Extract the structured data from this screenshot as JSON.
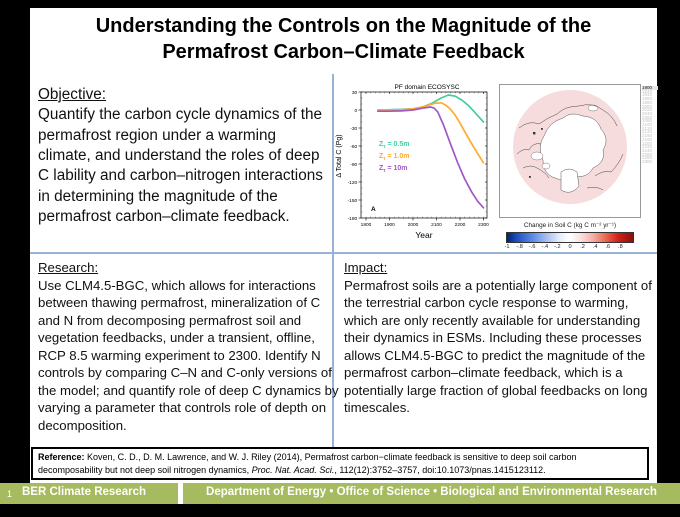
{
  "title": {
    "line1": "Understanding the Controls on the Magnitude of the",
    "line2": "Permafrost Carbon–Climate Feedback"
  },
  "objective": {
    "heading": "Objective:",
    "body": "Quantify the carbon cycle dynamics of the permafrost region under a warming climate, and understand the roles of deep C lability and carbon–nitrogen interactions in determining the magnitude of the permafrost carbon–climate feedback."
  },
  "research": {
    "heading": "Research:",
    "body": "Use CLM4.5-BGC, which allows for interactions between thawing permafrost, mineralization of C and N from decomposing permafrost soil and vegetation feedbacks, under a transient, offline, RCP 8.5 warming experiment to 2300. Identify N controls by comparing C–N and C-only versions of the model; and quantify role of deep C dynamics by varying a parameter that controls role of depth on decomposition."
  },
  "impact": {
    "heading": "Impact:",
    "body": "Permafrost soils are a potentially large component of the terrestrial carbon cycle response to warming, which are only recently available for understanding their dynamics in ESMs. Including these processes allows CLM4.5-BGC to predict the magnitude of the permafrost carbon–climate feedback, which is a potentially large fraction of global feedbacks on long timescales."
  },
  "reference": {
    "label": "Reference:",
    "text_before_journal": "Koven, C. D., D. M. Lawrence, and W. J. Riley (2014), Permafrost carbon−climate feedback is sensitive to deep soil carbon decomposability but not deep soil nitrogen dynamics, ",
    "journal": "Proc. Nat. Acad. Sci.",
    "text_after_journal": ", 112(12):3752–3757, doi:10.1073/pnas.1415123112."
  },
  "footer": {
    "page_number": "1",
    "left_label": "BER Climate Research",
    "right_label": "Department of Energy  •  Office of Science  •  Biological and Environmental Research"
  },
  "chart_data": {
    "type": "line",
    "title": "PF domain ECOSYSC",
    "xlabel": "Year",
    "ylabel": "Δ Total C (Pg)",
    "annotation": "A",
    "xlim": [
      1800,
      2300
    ],
    "ylim": [
      -180,
      30
    ],
    "xticks": [
      1800,
      1900,
      2000,
      2100,
      2200,
      2300
    ],
    "yticks": [
      30,
      0,
      -30,
      -60,
      -90,
      -120,
      -150,
      -180
    ],
    "legend_position": "mid-left",
    "grid": false,
    "series": [
      {
        "name_base": "Z",
        "name_sub": "τ",
        "name_rest": " = 0.5m",
        "color": "#3fcf9f",
        "points": [
          [
            1850,
            0
          ],
          [
            1900,
            0.5
          ],
          [
            1950,
            1
          ],
          [
            2000,
            2
          ],
          [
            2040,
            5
          ],
          [
            2080,
            11
          ],
          [
            2120,
            20
          ],
          [
            2150,
            25
          ],
          [
            2180,
            23
          ],
          [
            2210,
            16
          ],
          [
            2240,
            6
          ],
          [
            2270,
            -7
          ],
          [
            2300,
            -20
          ]
        ]
      },
      {
        "name_base": "Z",
        "name_sub": "τ",
        "name_rest": " = 1.0m",
        "color": "#ffab2e",
        "points": [
          [
            1850,
            0
          ],
          [
            1900,
            0
          ],
          [
            1950,
            0.5
          ],
          [
            2000,
            2
          ],
          [
            2050,
            6
          ],
          [
            2090,
            11
          ],
          [
            2120,
            12
          ],
          [
            2140,
            8
          ],
          [
            2160,
            1
          ],
          [
            2180,
            -9
          ],
          [
            2200,
            -22
          ],
          [
            2230,
            -43
          ],
          [
            2260,
            -63
          ],
          [
            2300,
            -88
          ]
        ]
      },
      {
        "name_base": "Z",
        "name_sub": "τ",
        "name_rest": " = 10m",
        "color": "#a257c4",
        "points": [
          [
            1850,
            -2
          ],
          [
            1900,
            -2
          ],
          [
            1950,
            -1.5
          ],
          [
            2000,
            0
          ],
          [
            2040,
            3
          ],
          [
            2075,
            5
          ],
          [
            2090,
            3
          ],
          [
            2105,
            -3
          ],
          [
            2130,
            -25
          ],
          [
            2160,
            -57
          ],
          [
            2190,
            -88
          ],
          [
            2220,
            -115
          ],
          [
            2250,
            -137
          ],
          [
            2275,
            -152
          ],
          [
            2300,
            -163
          ]
        ]
      }
    ]
  },
  "map_panel": {
    "caption": "Change in Soil C (kg C m⁻² yr⁻¹)",
    "colorbar_ticks": [
      "-1",
      "-.8",
      "-.6",
      "-.4",
      "-.2",
      "0",
      ".2",
      ".4",
      ".6",
      ".8"
    ],
    "colorbar_range": [
      -1,
      1
    ],
    "selected_year": "1900",
    "years": [
      "1900",
      "1920",
      "1940",
      "1960",
      "1980",
      "2000",
      "2020",
      "2040",
      "2060",
      "2080",
      "2100",
      "2120",
      "2140",
      "2160",
      "2180",
      "2200",
      "2220",
      "2240",
      "2260",
      "2280",
      "2300"
    ]
  },
  "colors": {
    "divider_blue": "#95b3d7",
    "footer_green": "#a6ba60",
    "map_land_pink": "#f6dcdc"
  }
}
